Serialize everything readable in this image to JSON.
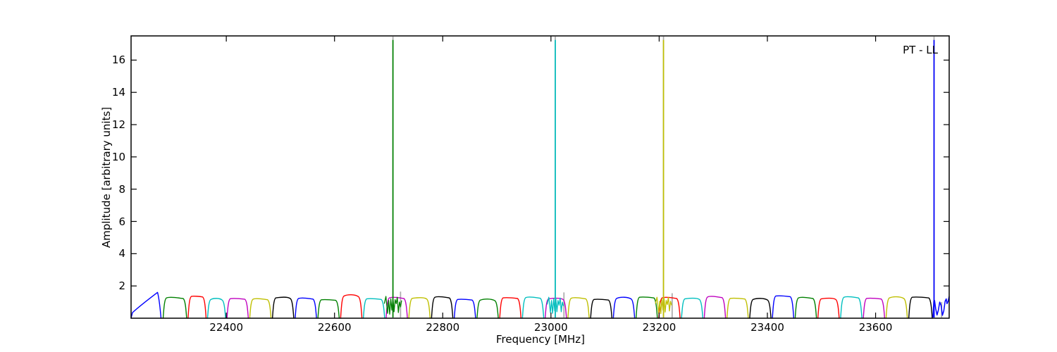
{
  "figure": {
    "background": "#ffffff"
  },
  "chart_data": {
    "type": "line",
    "title": "",
    "xlabel": "Frequency [MHz]",
    "ylabel": "Amplitude [arbitrary units]",
    "annotation": "PT - LL",
    "xlim": [
      22224,
      23736
    ],
    "ylim": [
      0,
      17.5
    ],
    "xticks": [
      22400,
      22600,
      22800,
      23000,
      23200,
      23400,
      23600
    ],
    "yticks": [
      2,
      4,
      6,
      8,
      10,
      12,
      14,
      16
    ],
    "grid": false,
    "legend_position": "none",
    "colors": {
      "cycle": [
        "#0000ff",
        "#008000",
        "#ff0000",
        "#00bfbf",
        "#bf00bf",
        "#bfbf00",
        "#000000"
      ],
      "marker_gray": "#aaaaaa",
      "axis": "#000000"
    },
    "bandpass": {
      "start_mhz": 22224,
      "baseline_level": 1.1,
      "widths_mhz": [
        58,
        46,
        36,
        36,
        42,
        42,
        42,
        42,
        42,
        42,
        42,
        42,
        42,
        42,
        42,
        42,
        42,
        42,
        42,
        42,
        42,
        42,
        42,
        42,
        42,
        42,
        42,
        42,
        42,
        42,
        42,
        42,
        42,
        42,
        46
      ],
      "amplitudes": [
        1.6,
        1.3,
        1.4,
        1.2,
        1.25,
        1.22,
        1.3,
        1.26,
        1.18,
        1.42,
        1.24,
        1.3,
        1.27,
        1.34,
        1.2,
        1.16,
        1.3,
        1.32,
        1.24,
        1.28,
        1.2,
        1.27,
        1.34,
        1.3,
        1.24,
        1.36,
        1.27,
        1.2,
        1.42,
        1.3,
        1.24,
        1.34,
        1.27,
        1.3,
        1.34
      ]
    },
    "spikes": [
      {
        "freq_mhz": 22708,
        "color_index": 1,
        "top": 17.25,
        "noise": [
          [
            -16,
            0.9
          ],
          [
            -13,
            1.35
          ],
          [
            -10,
            0.3
          ],
          [
            -8,
            1.1
          ],
          [
            -6,
            0.25
          ],
          [
            -4,
            1.2
          ],
          [
            -2,
            0.5
          ],
          [
            0,
            1.3
          ],
          [
            2,
            0.4
          ],
          [
            4,
            1.15
          ],
          [
            6,
            0.9
          ],
          [
            8,
            1.3
          ],
          [
            10,
            0.35
          ],
          [
            12,
            1.0
          ],
          [
            14,
            0.7
          ],
          [
            16,
            1.1
          ]
        ]
      },
      {
        "freq_mhz": 23008,
        "color_index": 3,
        "top": 17.25,
        "noise": [
          [
            -15,
            0.85
          ],
          [
            -12,
            1.3
          ],
          [
            -9,
            0.35
          ],
          [
            -7,
            1.1
          ],
          [
            -5,
            0.3
          ],
          [
            -3,
            1.2
          ],
          [
            -1,
            0.45
          ],
          [
            1,
            1.25
          ],
          [
            3,
            0.4
          ],
          [
            5,
            1.1
          ],
          [
            7,
            0.8
          ],
          [
            9,
            1.25
          ],
          [
            11,
            0.4
          ],
          [
            13,
            1.0
          ],
          [
            15,
            0.75
          ]
        ]
      },
      {
        "freq_mhz": 23208,
        "color_index": 5,
        "top": 17.25,
        "noise": [
          [
            -15,
            0.9
          ],
          [
            -12,
            1.3
          ],
          [
            -9,
            0.3
          ],
          [
            -7,
            1.05
          ],
          [
            -5,
            0.28
          ],
          [
            -3,
            1.2
          ],
          [
            -1,
            0.5
          ],
          [
            1,
            1.28
          ],
          [
            3,
            0.38
          ],
          [
            5,
            1.1
          ],
          [
            7,
            0.85
          ],
          [
            9,
            1.3
          ],
          [
            11,
            0.45
          ],
          [
            13,
            1.05
          ],
          [
            15,
            0.8
          ]
        ]
      },
      {
        "freq_mhz": 23708,
        "color_index": 0,
        "top": 17.25,
        "noise": []
      }
    ],
    "gray_lines_full": [
      22708,
      23008,
      23208,
      23708
    ],
    "gray_lines_short": [
      {
        "freq_mhz": 22722,
        "top": 1.65
      },
      {
        "freq_mhz": 23024,
        "top": 1.6
      },
      {
        "freq_mhz": 23224,
        "top": 1.55
      },
      {
        "freq_mhz": 23722,
        "top": 1.0
      }
    ],
    "end_wiggle": {
      "color_index": 0,
      "points": [
        [
          23706,
          0.05
        ],
        [
          23707.5,
          1.05
        ],
        [
          23709,
          1.1
        ],
        [
          23711,
          0.6
        ],
        [
          23713.5,
          0.2
        ],
        [
          23716,
          0.5
        ],
        [
          23718.5,
          1.0
        ],
        [
          23721,
          0.8
        ],
        [
          23723.5,
          0.18
        ],
        [
          23726,
          0.45
        ],
        [
          23728.5,
          1.05
        ],
        [
          23730.5,
          1.2
        ],
        [
          23732,
          0.9
        ],
        [
          23734,
          1.05
        ],
        [
          23736,
          1.35
        ]
      ]
    }
  }
}
